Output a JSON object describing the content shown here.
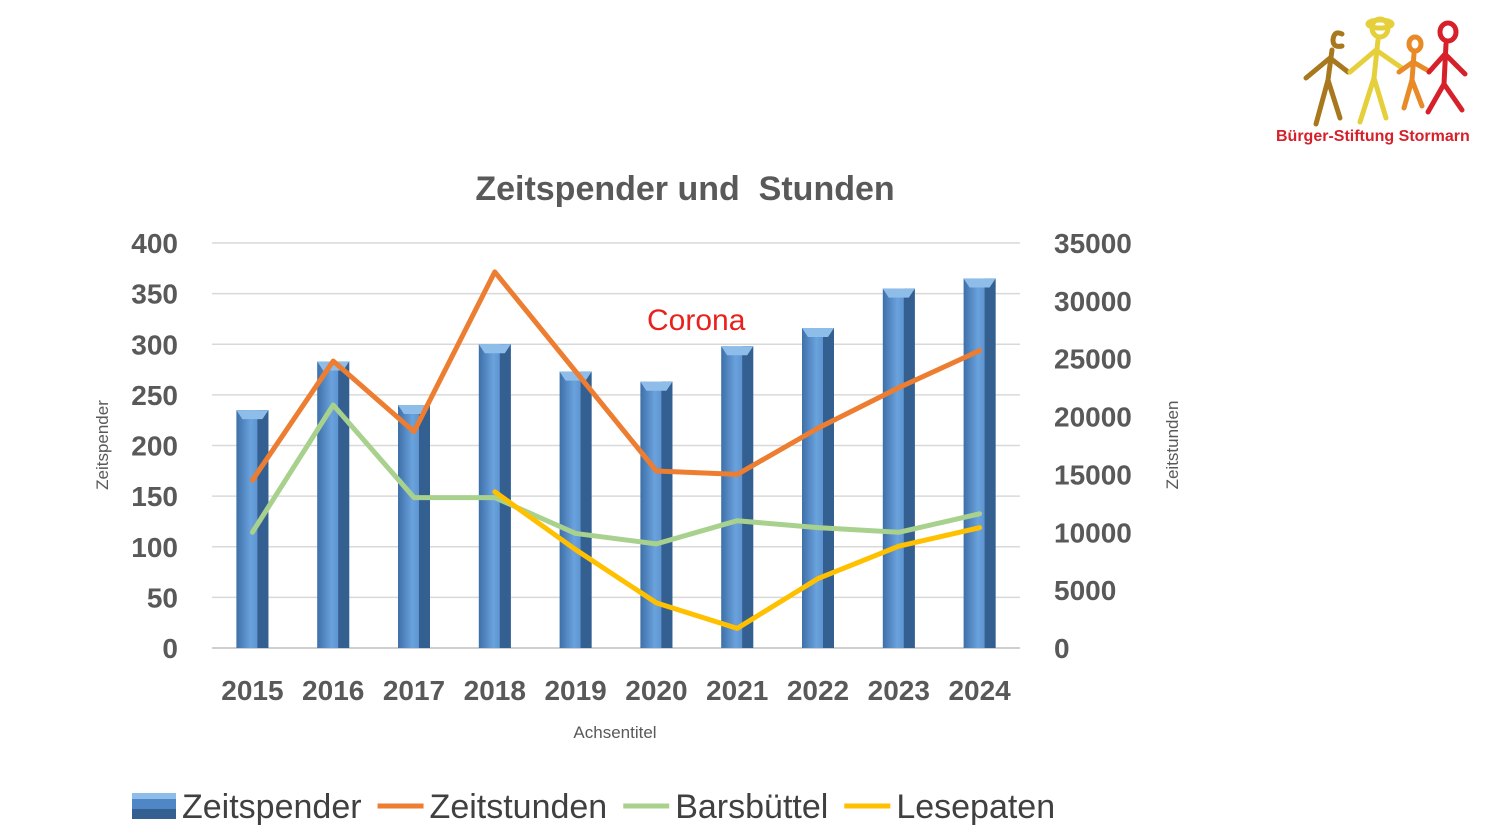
{
  "logo": {
    "text": "Bürger-Stiftung Stormarn",
    "figure_colors": [
      "#a8781e",
      "#e5cf3b",
      "#e78a27",
      "#d6202a"
    ]
  },
  "chart_data": {
    "type": "bar",
    "title": "Zeitspender und  Stunden",
    "xlabel": "Achsentitel",
    "ylabel": "Zeitspender",
    "y2label": "Zeitstunden",
    "categories": [
      "2015",
      "2016",
      "2017",
      "2018",
      "2019",
      "2020",
      "2021",
      "2022",
      "2023",
      "2024"
    ],
    "ylim": [
      0,
      400
    ],
    "yticks": [
      "0",
      "50",
      "100",
      "150",
      "200",
      "250",
      "300",
      "350",
      "400"
    ],
    "y2lim": [
      0,
      35000
    ],
    "y2ticks": [
      "0",
      "5000",
      "10000",
      "15000",
      "20000",
      "25000",
      "30000",
      "35000"
    ],
    "grid": true,
    "legend_position": "bottom",
    "annotation": {
      "text": "Corona",
      "color": "#e8211d"
    },
    "series": [
      {
        "name": "Zeitspender",
        "type": "bar",
        "axis": "left",
        "color": "#4f86c6",
        "values": [
          235,
          283,
          240,
          300,
          273,
          263,
          298,
          316,
          355,
          365
        ]
      },
      {
        "name": "Zeitstunden",
        "type": "line",
        "axis": "right",
        "color": "#ed7d31",
        "values": [
          14500,
          24800,
          18700,
          32500,
          23900,
          15300,
          15000,
          19000,
          22500,
          25700
        ]
      },
      {
        "name": "Barsbüttel",
        "type": "line",
        "axis": "right",
        "color": "#a9d18e",
        "values": [
          10000,
          21000,
          13000,
          13000,
          9900,
          9000,
          11000,
          10400,
          10000,
          11600
        ]
      },
      {
        "name": "Lesepaten",
        "type": "line",
        "axis": "right",
        "color": "#ffc000",
        "values": [
          null,
          null,
          null,
          13500,
          8500,
          3900,
          1700,
          6000,
          8800,
          10400
        ]
      }
    ]
  }
}
